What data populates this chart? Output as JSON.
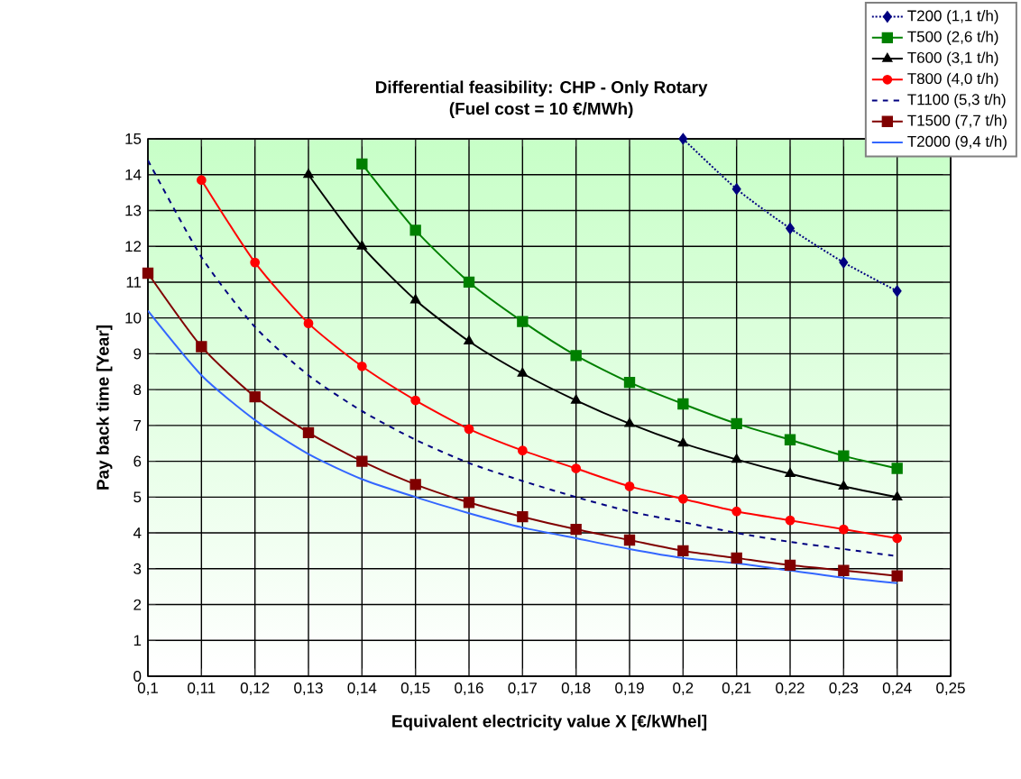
{
  "chart_data": {
    "type": "line",
    "title": "Differential feasibility: CHP - Only Rotary\n(Fuel cost = 10 €/MWh)",
    "xlabel": "Equivalent electricity value X [€/kWhel]",
    "ylabel": "Pay back time [Year]",
    "x": [
      0.1,
      0.11,
      0.12,
      0.13,
      0.14,
      0.15,
      0.16,
      0.17,
      0.18,
      0.19,
      0.2,
      0.21,
      0.22,
      0.23,
      0.24
    ],
    "series": [
      {
        "name": "T200 (1,1 t/h)",
        "color": "#000080",
        "marker": "diamond",
        "line_style": "dotted",
        "values": [
          null,
          null,
          null,
          null,
          null,
          null,
          null,
          null,
          null,
          null,
          15.0,
          13.6,
          12.5,
          11.55,
          10.75
        ]
      },
      {
        "name": "T500 (2,6 t/h)",
        "color": "#008000",
        "marker": "square",
        "line_style": "solid",
        "values": [
          null,
          null,
          null,
          null,
          14.3,
          12.45,
          11.0,
          9.9,
          8.95,
          8.2,
          7.6,
          7.05,
          6.6,
          6.15,
          5.8
        ]
      },
      {
        "name": "T600 (3,1 t/h)",
        "color": "#000000",
        "marker": "triangle",
        "line_style": "solid",
        "values": [
          null,
          null,
          null,
          14.0,
          12.0,
          10.5,
          9.35,
          8.45,
          7.7,
          7.05,
          6.5,
          6.05,
          5.65,
          5.3,
          5.0
        ]
      },
      {
        "name": "T800 (4,0 t/h)",
        "color": "#ff0000",
        "marker": "circle",
        "line_style": "solid",
        "values": [
          null,
          13.85,
          11.55,
          9.85,
          8.65,
          7.7,
          6.9,
          6.3,
          5.8,
          5.3,
          4.95,
          4.6,
          4.35,
          4.1,
          3.85
        ]
      },
      {
        "name": "T1100 (5,3 t/h)",
        "color": "#000080",
        "marker": "none",
        "line_style": "dashed",
        "values": [
          14.4,
          11.7,
          9.75,
          8.4,
          7.4,
          6.6,
          5.95,
          5.45,
          5.0,
          4.6,
          4.3,
          4.0,
          3.75,
          3.55,
          3.35
        ]
      },
      {
        "name": "T1500 (7,7 t/h)",
        "color": "#800000",
        "marker": "square",
        "line_style": "solid",
        "values": [
          11.25,
          9.2,
          7.8,
          6.8,
          6.0,
          5.35,
          4.85,
          4.45,
          4.1,
          3.8,
          3.5,
          3.3,
          3.1,
          2.95,
          2.8
        ]
      },
      {
        "name": "T2000 (9,4 t/h)",
        "color": "#3366ff",
        "marker": "none",
        "line_style": "solid",
        "values": [
          10.2,
          8.4,
          7.15,
          6.2,
          5.5,
          5.0,
          4.55,
          4.15,
          3.85,
          3.55,
          3.3,
          3.15,
          2.95,
          2.75,
          2.6
        ]
      }
    ],
    "xlim": [
      0.1,
      0.25
    ],
    "xticks": [
      {
        "value": 0.1,
        "label": "0,1"
      },
      {
        "value": 0.11,
        "label": "0,11"
      },
      {
        "value": 0.12,
        "label": "0,12"
      },
      {
        "value": 0.13,
        "label": "0,13"
      },
      {
        "value": 0.14,
        "label": "0,14"
      },
      {
        "value": 0.15,
        "label": "0,15"
      },
      {
        "value": 0.16,
        "label": "0,16"
      },
      {
        "value": 0.17,
        "label": "0,17"
      },
      {
        "value": 0.18,
        "label": "0,18"
      },
      {
        "value": 0.19,
        "label": "0,19"
      },
      {
        "value": 0.2,
        "label": "0,2"
      },
      {
        "value": 0.21,
        "label": "0,21"
      },
      {
        "value": 0.22,
        "label": "0,22"
      },
      {
        "value": 0.23,
        "label": "0,23"
      },
      {
        "value": 0.24,
        "label": "0,24"
      },
      {
        "value": 0.25,
        "label": "0,25"
      }
    ],
    "ylim": [
      0,
      15
    ],
    "yticks": [
      0,
      1,
      2,
      3,
      4,
      5,
      6,
      7,
      8,
      9,
      10,
      11,
      12,
      13,
      14,
      15
    ],
    "grid": true,
    "legend": "top right"
  }
}
